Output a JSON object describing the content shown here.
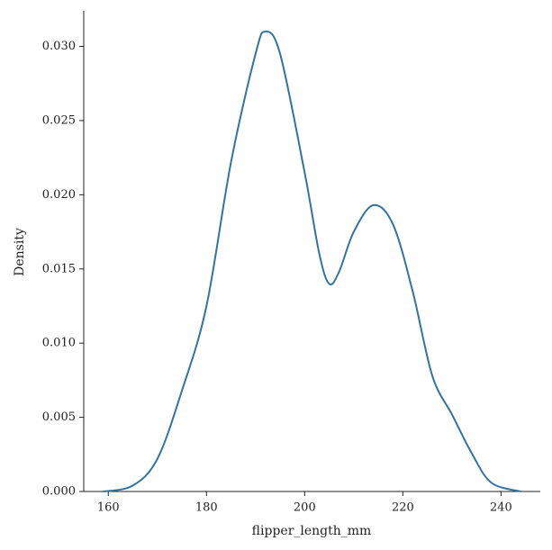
{
  "chart_data": {
    "type": "line",
    "xlabel": "flipper_length_mm",
    "ylabel": "Density",
    "x": [
      159,
      165,
      170,
      175,
      180,
      185,
      190,
      192,
      195,
      200,
      203,
      205,
      207,
      210,
      214,
      218,
      222,
      226,
      230,
      234,
      238,
      244
    ],
    "series": [
      {
        "color": "#3274a1",
        "values": [
          0.0,
          0.0004,
          0.0022,
          0.0068,
          0.0125,
          0.0222,
          0.0295,
          0.031,
          0.0295,
          0.0215,
          0.016,
          0.014,
          0.0148,
          0.0175,
          0.0193,
          0.018,
          0.0135,
          0.0078,
          0.0052,
          0.0026,
          0.0006,
          0.0
        ]
      }
    ],
    "xlim": [
      155,
      248
    ],
    "ylim": [
      0,
      0.0324
    ],
    "xticks": [
      160,
      180,
      200,
      220,
      240
    ],
    "yticks": [
      {
        "value": 0,
        "label": "0.000"
      },
      {
        "value": 0.005,
        "label": "0.005"
      },
      {
        "value": 0.01,
        "label": "0.010"
      },
      {
        "value": 0.015,
        "label": "0.015"
      },
      {
        "value": 0.02,
        "label": "0.020"
      },
      {
        "value": 0.025,
        "label": "0.025"
      },
      {
        "value": 0.03,
        "label": "0.030"
      }
    ]
  }
}
